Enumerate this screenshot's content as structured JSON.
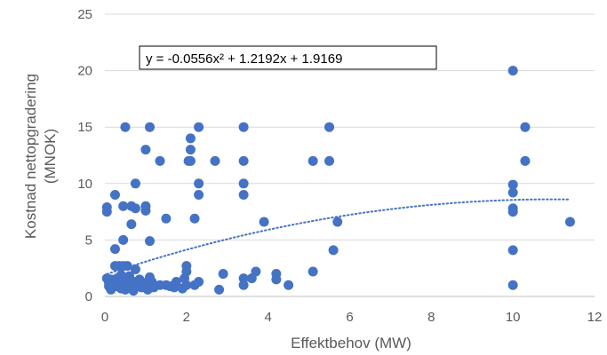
{
  "chart_data": {
    "type": "scatter",
    "title": "",
    "xlabel": "Effektbehov (MW)",
    "ylabel_lines": [
      "Kostnad nettopgradering",
      "(MNOK)"
    ],
    "xlim": [
      0,
      12
    ],
    "ylim": [
      0,
      25
    ],
    "x_ticks": [
      "0",
      "2",
      "4",
      "6",
      "8",
      "10",
      "12"
    ],
    "y_ticks": [
      "0",
      "5",
      "10",
      "15",
      "20",
      "25"
    ],
    "grid": "horizontal",
    "legend": "none",
    "marker_color": "#4472C4",
    "trendline": {
      "kind": "polynomial-2",
      "equation_label": "y = -0.0556x² + 1.2192x + 1.9169",
      "a": -0.0556,
      "b": 1.2192,
      "c": 1.9169,
      "x_range": [
        0.05,
        11.4
      ],
      "style": "dotted",
      "color": "#4472C4"
    },
    "points": [
      [
        0.05,
        7.9
      ],
      [
        0.05,
        7.5
      ],
      [
        0.05,
        1.6
      ],
      [
        0.1,
        1.2
      ],
      [
        0.1,
        0.9
      ],
      [
        0.15,
        1.5
      ],
      [
        0.15,
        0.6
      ],
      [
        0.2,
        1.0
      ],
      [
        0.25,
        9.0
      ],
      [
        0.25,
        4.2
      ],
      [
        0.25,
        2.7
      ],
      [
        0.3,
        1.6
      ],
      [
        0.3,
        0.9
      ],
      [
        0.35,
        2.7
      ],
      [
        0.35,
        1.1
      ],
      [
        0.4,
        0.7
      ],
      [
        0.4,
        1.9
      ],
      [
        0.45,
        8.0
      ],
      [
        0.45,
        5.0
      ],
      [
        0.45,
        2.7
      ],
      [
        0.5,
        15.0
      ],
      [
        0.5,
        1.6
      ],
      [
        0.5,
        0.6
      ],
      [
        0.55,
        2.7
      ],
      [
        0.55,
        1.2
      ],
      [
        0.6,
        0.8
      ],
      [
        0.6,
        1.8
      ],
      [
        0.65,
        8.0
      ],
      [
        0.65,
        6.4
      ],
      [
        0.7,
        1.3
      ],
      [
        0.7,
        0.5
      ],
      [
        0.75,
        10.0
      ],
      [
        0.75,
        7.8
      ],
      [
        0.75,
        2.4
      ],
      [
        0.8,
        1.0
      ],
      [
        0.85,
        1.5
      ],
      [
        0.9,
        0.8
      ],
      [
        0.95,
        1.2
      ],
      [
        1.0,
        13.0
      ],
      [
        1.0,
        8.0
      ],
      [
        1.0,
        7.6
      ],
      [
        1.0,
        1.0
      ],
      [
        1.05,
        0.6
      ],
      [
        1.1,
        15.0
      ],
      [
        1.1,
        4.9
      ],
      [
        1.1,
        1.7
      ],
      [
        1.15,
        1.3
      ],
      [
        1.2,
        0.8
      ],
      [
        1.35,
        12.0
      ],
      [
        1.35,
        1.0
      ],
      [
        1.5,
        6.9
      ],
      [
        1.5,
        1.0
      ],
      [
        1.6,
        0.9
      ],
      [
        1.7,
        0.8
      ],
      [
        1.75,
        1.3
      ],
      [
        1.9,
        0.7
      ],
      [
        1.95,
        1.6
      ],
      [
        2.0,
        2.7
      ],
      [
        2.0,
        2.2
      ],
      [
        2.0,
        1.0
      ],
      [
        2.05,
        12.0
      ],
      [
        2.1,
        14.0
      ],
      [
        2.1,
        13.0
      ],
      [
        2.1,
        12.0
      ],
      [
        2.2,
        6.9
      ],
      [
        2.2,
        1.0
      ],
      [
        2.3,
        15.0
      ],
      [
        2.3,
        10.0
      ],
      [
        2.3,
        9.0
      ],
      [
        2.3,
        1.3
      ],
      [
        2.7,
        12.0
      ],
      [
        2.8,
        0.6
      ],
      [
        2.9,
        2.0
      ],
      [
        3.4,
        15.0
      ],
      [
        3.4,
        12.0
      ],
      [
        3.4,
        10.0
      ],
      [
        3.4,
        9.0
      ],
      [
        3.4,
        1.6
      ],
      [
        3.4,
        1.0
      ],
      [
        3.6,
        1.6
      ],
      [
        3.7,
        2.2
      ],
      [
        3.9,
        6.6
      ],
      [
        4.2,
        2.0
      ],
      [
        4.2,
        1.5
      ],
      [
        4.5,
        1.0
      ],
      [
        5.1,
        12.0
      ],
      [
        5.1,
        2.2
      ],
      [
        5.5,
        15.0
      ],
      [
        5.5,
        12.0
      ],
      [
        5.6,
        4.1
      ],
      [
        5.7,
        6.6
      ],
      [
        10.0,
        20.0
      ],
      [
        10.0,
        9.9
      ],
      [
        10.0,
        9.2
      ],
      [
        10.0,
        7.8
      ],
      [
        10.0,
        7.5
      ],
      [
        10.0,
        4.1
      ],
      [
        10.0,
        1.0
      ],
      [
        10.3,
        15.0
      ],
      [
        10.3,
        12.0
      ],
      [
        11.4,
        6.6
      ]
    ]
  }
}
